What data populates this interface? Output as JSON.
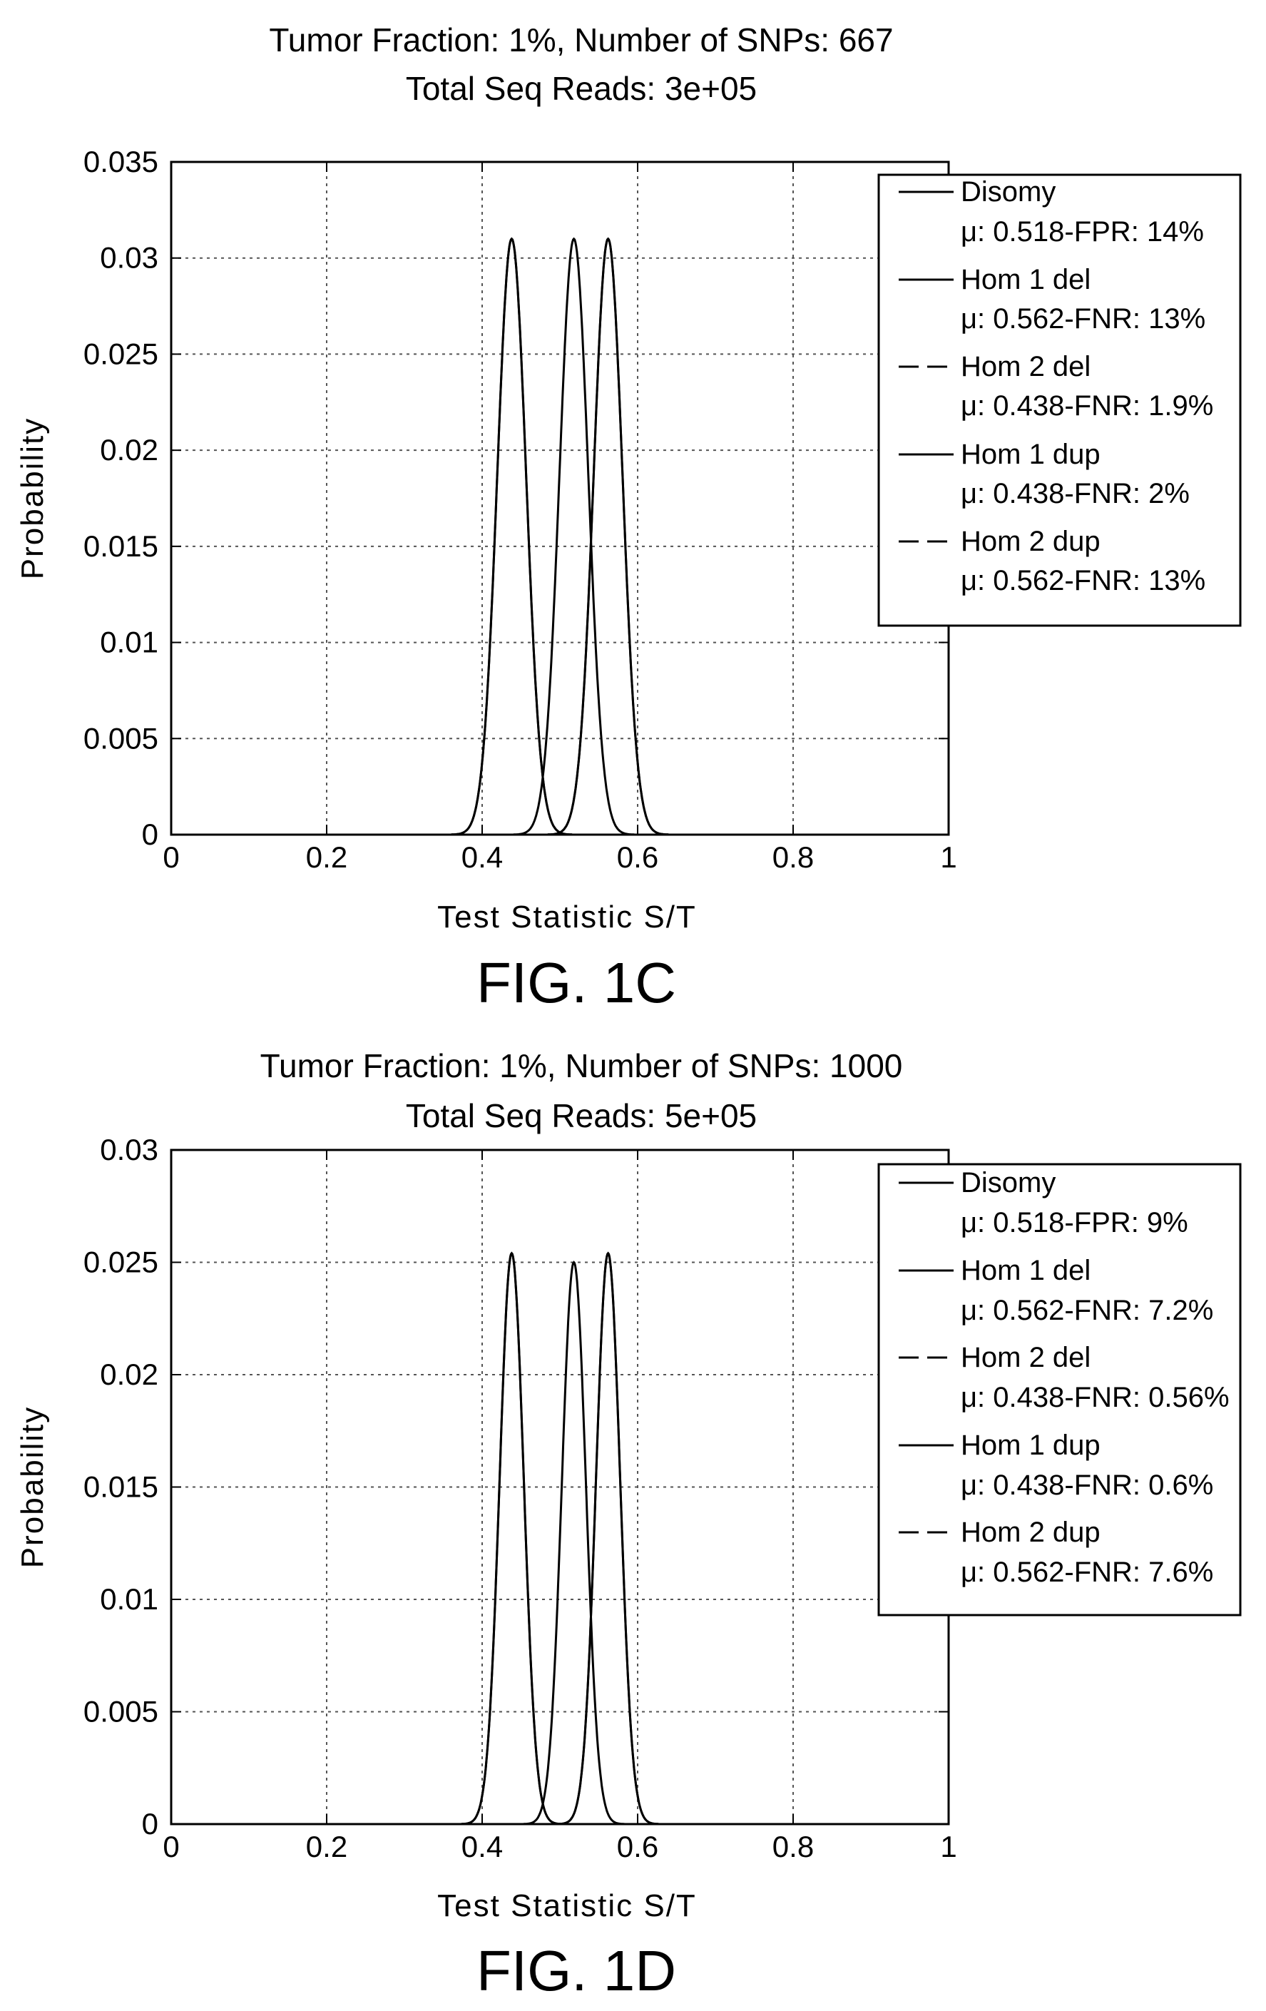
{
  "chart_data": [
    {
      "type": "line",
      "figure_label": "FIG. 1C",
      "title_lines": [
        "Tumor Fraction: 1%, Number of SNPs: 667",
        "Total Seq Reads: 3e+05"
      ],
      "xlabel": "Test Statistic S/T",
      "ylabel": "Probability",
      "xlim": [
        0,
        1
      ],
      "ylim": [
        0,
        0.035
      ],
      "xticks": [
        0,
        0.2,
        0.4,
        0.6,
        0.8,
        1
      ],
      "xtick_labels": [
        "0",
        "0.2",
        "0.4",
        "0.6",
        "0.8",
        "1"
      ],
      "yticks": [
        0,
        0.005,
        0.01,
        0.015,
        0.02,
        0.025,
        0.03,
        0.035
      ],
      "ytick_labels": [
        "0",
        "0.005",
        "0.01",
        "0.015",
        "0.02",
        "0.025",
        "0.03",
        "0.035"
      ],
      "grid": true,
      "legend_position": "top-right",
      "series": [
        {
          "name": "Disomy",
          "detail": "μ: 0.518-FPR: 14%",
          "style": "solid",
          "mean": 0.518,
          "sd": 0.0185,
          "peak": 0.031
        },
        {
          "name": "Hom 1 del",
          "detail": "μ: 0.562-FNR: 13%",
          "style": "solid",
          "mean": 0.562,
          "sd": 0.0185,
          "peak": 0.031
        },
        {
          "name": "Hom 2 del",
          "detail": "μ: 0.438-FNR: 1.9%",
          "style": "dashed",
          "mean": 0.438,
          "sd": 0.0185,
          "peak": 0.031
        },
        {
          "name": "Hom 1 dup",
          "detail": "μ: 0.438-FNR: 2%",
          "style": "solid",
          "mean": 0.438,
          "sd": 0.0185,
          "peak": 0.031
        },
        {
          "name": "Hom 2 dup",
          "detail": "μ: 0.562-FNR: 13%",
          "style": "dashed",
          "mean": 0.562,
          "sd": 0.0185,
          "peak": 0.031
        }
      ]
    },
    {
      "type": "line",
      "figure_label": "FIG. 1D",
      "title_lines": [
        "Tumor Fraction: 1%, Number of SNPs: 1000",
        "Total Seq Reads: 5e+05"
      ],
      "xlabel": "Test Statistic S/T",
      "ylabel": "Probability",
      "xlim": [
        0,
        1
      ],
      "ylim": [
        0,
        0.03
      ],
      "xticks": [
        0,
        0.2,
        0.4,
        0.6,
        0.8,
        1
      ],
      "xtick_labels": [
        "0",
        "0.2",
        "0.4",
        "0.6",
        "0.8",
        "1"
      ],
      "yticks": [
        0,
        0.005,
        0.01,
        0.015,
        0.02,
        0.025,
        0.03
      ],
      "ytick_labels": [
        "0",
        "0.005",
        "0.01",
        "0.015",
        "0.02",
        "0.025",
        "0.03"
      ],
      "grid": true,
      "legend_position": "top-right",
      "series": [
        {
          "name": "Disomy",
          "detail": "μ: 0.518-FPR: 9%",
          "style": "solid",
          "mean": 0.518,
          "sd": 0.0155,
          "peak": 0.025
        },
        {
          "name": "Hom 1 del",
          "detail": "μ: 0.562-FNR: 7.2%",
          "style": "solid",
          "mean": 0.562,
          "sd": 0.0155,
          "peak": 0.0254
        },
        {
          "name": "Hom 2 del",
          "detail": "μ: 0.438-FNR: 0.56%",
          "style": "dashed",
          "mean": 0.438,
          "sd": 0.0155,
          "peak": 0.0254
        },
        {
          "name": "Hom 1 dup",
          "detail": "μ: 0.438-FNR: 0.6%",
          "style": "solid",
          "mean": 0.438,
          "sd": 0.0155,
          "peak": 0.0254
        },
        {
          "name": "Hom 2 dup",
          "detail": "μ: 0.562-FNR: 7.6%",
          "style": "dashed",
          "mean": 0.562,
          "sd": 0.0155,
          "peak": 0.0254
        }
      ]
    }
  ]
}
